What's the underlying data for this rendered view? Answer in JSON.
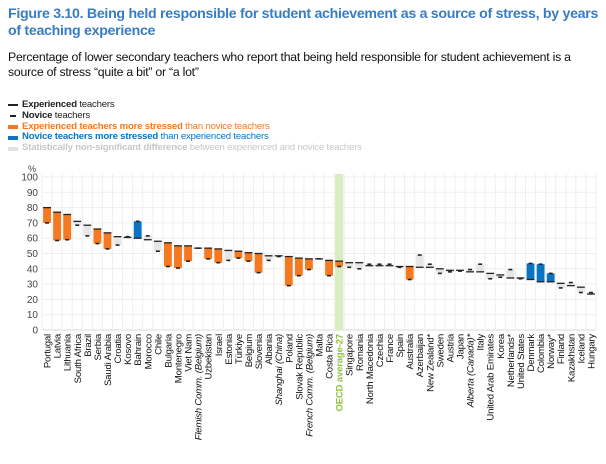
{
  "figure": {
    "title": "Figure 3.10. Being held responsible for student achievement as a source of stress, by years of teaching experience",
    "subtitle": "Percentage of lower secondary teachers who report that being held responsible for student achievement is a source of stress “quite a bit” or “a lot”"
  },
  "legend": [
    {
      "key": "experienced",
      "bold": "Experienced",
      "rest": " teachers",
      "color": "#222222",
      "text_color": "#222222",
      "icon": "long-dash-marker"
    },
    {
      "key": "novice",
      "bold": "Novice",
      "rest": " teachers",
      "color": "#222222",
      "text_color": "#222222",
      "icon": "short-dash-marker"
    },
    {
      "key": "exp_more",
      "bold": "Experienced teachers more stressed",
      "rest": " than novice teachers",
      "color": "#f47920",
      "text_color": "#f47920",
      "icon": "orange-bar-swatch"
    },
    {
      "key": "nov_more",
      "bold": "Novice teachers more stressed",
      "rest": " than experienced teachers",
      "color": "#0b74c0",
      "text_color": "#0b74c0",
      "icon": "blue-bar-swatch"
    },
    {
      "key": "ns",
      "bold": "Statistically non-significant difference",
      "rest": " between experienced and novice teachers",
      "color": "#e2e2e2",
      "text_color": "#c8c8c8",
      "icon": "grey-bar-swatch"
    }
  ],
  "colors": {
    "exp_more": "#f47920",
    "nov_more": "#0b74c0",
    "ns": "#e6e6e6",
    "oecd_highlight": "#d9ecc2",
    "oecd_label": "#8cc63f",
    "grid": "#efefef"
  },
  "chart_data": {
    "type": "bar",
    "subtype": "range-bar (experienced vs novice)",
    "title": "Being held responsible for student achievement as a source of stress, by years of teaching experience",
    "ylabel": "%",
    "ylim": [
      0,
      100
    ],
    "yticks": [
      0,
      10,
      20,
      30,
      40,
      50,
      60,
      70,
      80,
      90,
      100
    ],
    "grid": true,
    "legend_position": "top-left",
    "highlight_category": "OECD average-27",
    "categories": [
      "Portugal",
      "Latvia",
      "Lithuania",
      "South Africa",
      "Brazil",
      "Serbia",
      "Saudi Arabia",
      "Croatia",
      "Kosovo",
      "Bahrain",
      "Morocco",
      "Chile",
      "Bulgaria",
      "Montenegro",
      "Viet Nam",
      "Flemish Comm. (Belgium)",
      "Uzbekistan",
      "Israel",
      "Estonia",
      "Türkiye",
      "Belgium",
      "Slovenia",
      "Albania",
      "Shanghai (China)",
      "Poland",
      "Slovak Republic",
      "French Comm. (Belgium)",
      "Malta",
      "Costa Rica",
      "OECD average-27",
      "Singapore",
      "Romania",
      "North Macedonia",
      "Czechia",
      "France",
      "Spain",
      "Australia",
      "Azerbaijan",
      "New Zealand*",
      "Sweden",
      "Austria",
      "Japan",
      "Alberta (Canada)*",
      "Italy",
      "United Arab Emirates",
      "Korea",
      "Netherlands*",
      "United States",
      "Denmark",
      "Colombia",
      "Norway*",
      "Finland",
      "Kazakhstan",
      "Iceland",
      "Hungary"
    ],
    "italic_categories": [
      "Flemish Comm. (Belgium)",
      "Shanghai (China)",
      "French Comm. (Belgium)",
      "Alberta (Canada)*"
    ],
    "series": [
      {
        "name": "Experienced teachers",
        "values": [
          80,
          77,
          75.5,
          71,
          68.5,
          66,
          63.5,
          61,
          60.5,
          60,
          59,
          58,
          57,
          55,
          55,
          53.5,
          53.5,
          53,
          52,
          51.5,
          50.5,
          50,
          48.5,
          48.5,
          48,
          47,
          46.5,
          46.5,
          45.5,
          45,
          44,
          44,
          42,
          42,
          42,
          41.5,
          41.5,
          41,
          41,
          40,
          39,
          39,
          38,
          38,
          37,
          36,
          34,
          34,
          33,
          31.5,
          31.5,
          30.5,
          29,
          28,
          23.5
        ]
      },
      {
        "name": "Novice teachers",
        "values": [
          70,
          58.5,
          59,
          68.5,
          61.5,
          56.5,
          53,
          55.5,
          61,
          71,
          61.5,
          51.5,
          41.5,
          40.5,
          45,
          53.5,
          46.5,
          44,
          45.5,
          47,
          45,
          37.5,
          45.5,
          48,
          29,
          35.5,
          39.5,
          46.5,
          35.5,
          41.5,
          41,
          40,
          43,
          43,
          43,
          41,
          33,
          49,
          43,
          37,
          38,
          38.5,
          39.5,
          43,
          33.5,
          34.5,
          39.5,
          33.5,
          43.5,
          43,
          37,
          27.5,
          31,
          24.5,
          24.5
        ]
      }
    ],
    "significance": [
      "exp_more",
      "exp_more",
      "exp_more",
      "ns",
      "ns",
      "exp_more",
      "exp_more",
      "ns",
      "ns",
      "nov_more",
      "ns",
      "ns",
      "exp_more",
      "exp_more",
      "exp_more",
      "ns",
      "exp_more",
      "exp_more",
      "ns",
      "exp_more",
      "exp_more",
      "exp_more",
      "ns",
      "ns",
      "exp_more",
      "exp_more",
      "exp_more",
      "ns",
      "exp_more",
      "exp_more",
      "ns",
      "ns",
      "ns",
      "ns",
      "ns",
      "ns",
      "exp_more",
      "ns",
      "ns",
      "ns",
      "ns",
      "ns",
      "ns",
      "ns",
      "ns",
      "ns",
      "ns",
      "ns",
      "nov_more",
      "nov_more",
      "nov_more",
      "ns",
      "ns",
      "ns",
      "ns"
    ]
  }
}
